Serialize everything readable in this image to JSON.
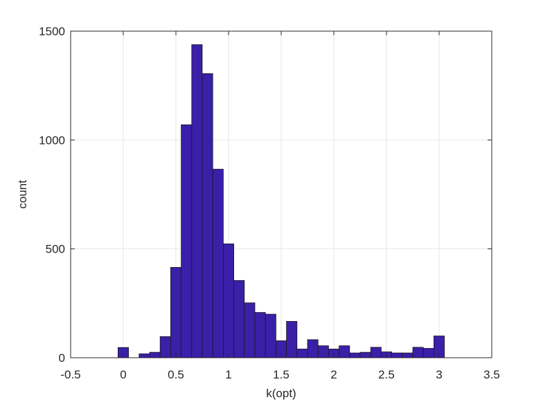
{
  "chart_data": {
    "type": "bar",
    "title": "",
    "xlabel": "k(opt)",
    "ylabel": "count",
    "xlim": [
      -0.5,
      3.5
    ],
    "ylim": [
      0,
      1500
    ],
    "xticks": [
      -0.5,
      0,
      0.5,
      1,
      1.5,
      2,
      2.5,
      3,
      3.5
    ],
    "xtick_labels": [
      "-0.5",
      "0",
      "0.5",
      "1",
      "1.5",
      "2",
      "2.5",
      "3",
      "3.5"
    ],
    "yticks": [
      0,
      500,
      1000,
      1500
    ],
    "ytick_labels": [
      "0",
      "500",
      "1000",
      "1500"
    ],
    "grid": true,
    "bar_color": "#3a1fa8",
    "bin_edges": [
      -0.05,
      0.05,
      0.15,
      0.25,
      0.35,
      0.45,
      0.55,
      0.65,
      0.75,
      0.85,
      0.95,
      1.05,
      1.15,
      1.25,
      1.35,
      1.45,
      1.55,
      1.65,
      1.75,
      1.85,
      1.95,
      2.05,
      2.15,
      2.25,
      2.35,
      2.45,
      2.55,
      2.65,
      2.75,
      2.85,
      2.95,
      3.05
    ],
    "values": [
      47,
      0,
      18,
      25,
      97,
      415,
      1070,
      1438,
      1305,
      866,
      523,
      355,
      252,
      208,
      200,
      78,
      167,
      40,
      83,
      55,
      40,
      55,
      22,
      25,
      48,
      27,
      22,
      22,
      48,
      43,
      100
    ]
  }
}
